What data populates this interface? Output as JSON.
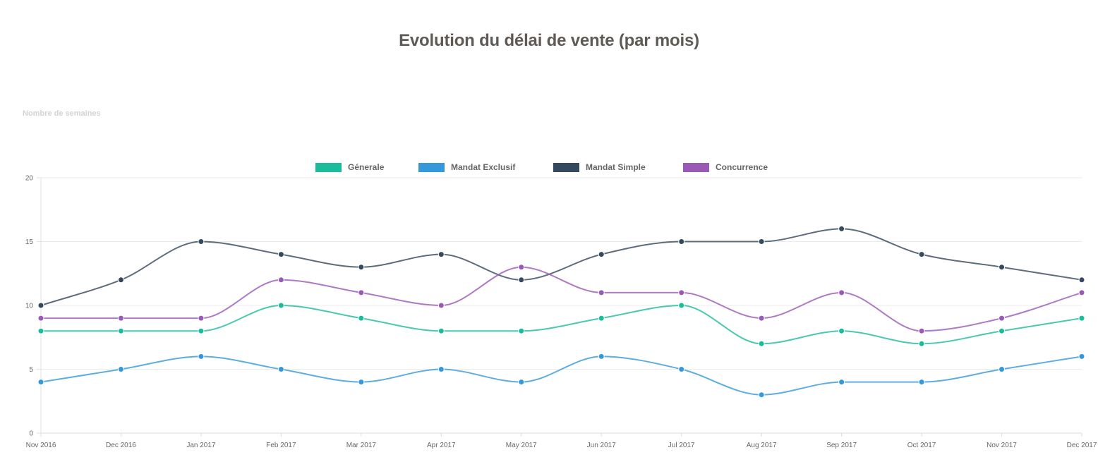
{
  "chart_data": {
    "type": "line",
    "title": "Evolution du délai de vente (par mois)",
    "ylabel": "Nombre de semaines",
    "xlabel": "",
    "ylim": [
      0,
      20
    ],
    "yticks": [
      "0",
      "5",
      "10",
      "15",
      "20"
    ],
    "grid": true,
    "legend_position": "top",
    "categories": [
      "Nov 2016",
      "Dec 2016",
      "Jan 2017",
      "Feb 2017",
      "Mar 2017",
      "Apr 2017",
      "May 2017",
      "Jun 2017",
      "Jul 2017",
      "Aug 2017",
      "Sep 2017",
      "Oct 2017",
      "Nov 2017",
      "Dec 2017"
    ],
    "series": [
      {
        "name": "Génerale",
        "color": "#1abc9c",
        "values": [
          8,
          8,
          8,
          10,
          9,
          8,
          8,
          9,
          10,
          7,
          8,
          7,
          8,
          9
        ]
      },
      {
        "name": "Mandat Exclusif",
        "color": "#3498db",
        "values": [
          4,
          5,
          6,
          5,
          4,
          5,
          4,
          6,
          5,
          3,
          4,
          4,
          5,
          6
        ]
      },
      {
        "name": "Mandat Simple",
        "color": "#34495e",
        "values": [
          10,
          12,
          15,
          14,
          13,
          14,
          12,
          14,
          15,
          15,
          16,
          14,
          13,
          12
        ]
      },
      {
        "name": "Concurrence",
        "color": "#9b59b6",
        "values": [
          9,
          9,
          9,
          12,
          11,
          10,
          13,
          11,
          11,
          9,
          11,
          8,
          9,
          11
        ]
      }
    ]
  }
}
